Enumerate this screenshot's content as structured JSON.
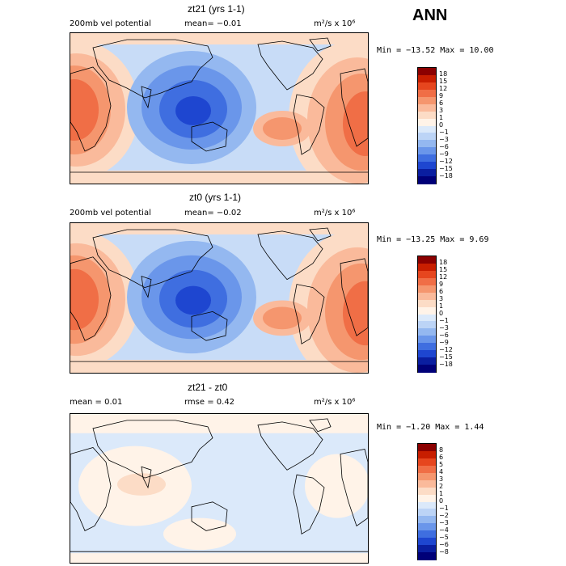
{
  "season": "ANN",
  "panels": [
    {
      "title": "zt21 (yrs 1-1)",
      "left_label": "200mb vel potential",
      "center_label": "mean=  −0.01",
      "units": "m²/s x 10⁶",
      "minmax": "Min = −13.52 Max =  10.00",
      "levels": [
        "18",
        "15",
        "12",
        "9",
        "6",
        "3",
        "1",
        "0",
        "−1",
        "−3",
        "−6",
        "−9",
        "−12",
        "−15",
        "−18"
      ]
    },
    {
      "title": "zt0 (yrs 1-1)",
      "left_label": "200mb vel potential",
      "center_label": "mean=  −0.02",
      "units": "m²/s x 10⁶",
      "minmax": "Min = −13.25 Max =   9.69",
      "levels": [
        "18",
        "15",
        "12",
        "9",
        "6",
        "3",
        "1",
        "0",
        "−1",
        "−3",
        "−6",
        "−9",
        "−12",
        "−15",
        "−18"
      ]
    },
    {
      "title": "zt21 - zt0",
      "left_label": "mean =   0.01",
      "center_label": "rmse =   0.42",
      "units": "m²/s x 10⁶",
      "minmax": "Min =  −1.20 Max =   1.44",
      "levels": [
        "8",
        "6",
        "5",
        "4",
        "3",
        "2",
        "1",
        "0",
        "−1",
        "−2",
        "−3",
        "−4",
        "−5",
        "−6",
        "−8"
      ]
    }
  ],
  "chart_data": [
    {
      "type": "heatmap",
      "title": "zt21 (yrs 1-1)",
      "variable": "200mb vel potential",
      "units": "m2/s x 10^6",
      "mean": -0.01,
      "min": -13.52,
      "max": 10.0,
      "contour_levels": [
        -18,
        -15,
        -12,
        -9,
        -6,
        -3,
        -1,
        0,
        1,
        3,
        6,
        9,
        12,
        15,
        18
      ]
    },
    {
      "type": "heatmap",
      "title": "zt0 (yrs 1-1)",
      "variable": "200mb vel potential",
      "units": "m2/s x 10^6",
      "mean": -0.02,
      "min": -13.25,
      "max": 9.69,
      "contour_levels": [
        -18,
        -15,
        -12,
        -9,
        -6,
        -3,
        -1,
        0,
        1,
        3,
        6,
        9,
        12,
        15,
        18
      ]
    },
    {
      "type": "heatmap",
      "title": "zt21 - zt0",
      "units": "m2/s x 10^6",
      "mean": 0.01,
      "rmse": 0.42,
      "min": -1.2,
      "max": 1.44,
      "contour_levels": [
        -8,
        -6,
        -5,
        -4,
        -3,
        -2,
        -1,
        0,
        1,
        2,
        3,
        4,
        5,
        6,
        8
      ]
    }
  ],
  "colors": {
    "scale": [
      "#8b0000",
      "#c81e00",
      "#e6461e",
      "#f06e46",
      "#f5966e",
      "#faba9b",
      "#fcdcc6",
      "#fff3e8",
      "#dbe9fa",
      "#bcd4f6",
      "#94b8f0",
      "#6a96ea",
      "#3f6ee0",
      "#1e46d0",
      "#0a1ea0",
      "#000078"
    ]
  }
}
